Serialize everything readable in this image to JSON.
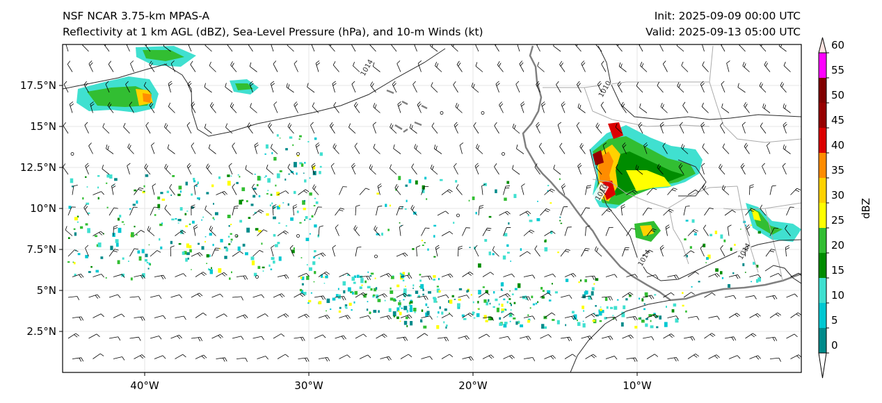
{
  "header": {
    "model_line": "NSF NCAR 3.75-km MPAS-A",
    "fields_line": "Reflectivity at 1 km AGL (dBZ), Sea-Level Pressure (hPa), and 10-m Winds (kt)",
    "init": "Init: 2025-09-09 00:00 UTC",
    "valid": "Valid: 2025-09-13 05:00 UTC"
  },
  "map": {
    "lon_range": [
      -45,
      0
    ],
    "lat_range": [
      0,
      20
    ],
    "lon_ticks": [
      {
        "value": -40,
        "label": "40°W"
      },
      {
        "value": -30,
        "label": "30°W"
      },
      {
        "value": -20,
        "label": "20°W"
      },
      {
        "value": -10,
        "label": "10°W"
      }
    ],
    "lat_ticks": [
      {
        "value": 2.5,
        "label": "2.5°N"
      },
      {
        "value": 5,
        "label": "5°N"
      },
      {
        "value": 7.5,
        "label": "7.5°N"
      },
      {
        "value": 10,
        "label": "10°N"
      },
      {
        "value": 12.5,
        "label": "12.5°N"
      },
      {
        "value": 15,
        "label": "15°N"
      },
      {
        "value": 17.5,
        "label": "17.5°N"
      }
    ],
    "gridlines": true,
    "isobar_labels": [
      {
        "text": "1014",
        "lon": -26.5,
        "lat": 18.6
      },
      {
        "text": "1010",
        "lon": -12.0,
        "lat": 17.3
      },
      {
        "text": "1010",
        "lon": -12.2,
        "lat": 11.0
      },
      {
        "text": "1014",
        "lon": -9.6,
        "lat": 7.0
      },
      {
        "text": "1014",
        "lon": -3.5,
        "lat": 7.4
      }
    ]
  },
  "colorbar": {
    "label": "dBZ",
    "levels": [
      0,
      5,
      10,
      15,
      20,
      25,
      30,
      35,
      40,
      45,
      50,
      55,
      60
    ],
    "tick_labels": [
      "0",
      "5",
      "10",
      "15",
      "20",
      "25",
      "30",
      "35",
      "40",
      "45",
      "50",
      "55",
      "60"
    ],
    "colors": [
      "#008b8b",
      "#00c8d2",
      "#40e0d0",
      "#008c00",
      "#32be32",
      "#ffff00",
      "#ffd200",
      "#ff8c00",
      "#dc0000",
      "#960000",
      "#800000",
      "#ff00ff",
      "#ffe4e1"
    ],
    "extend": "both"
  }
}
